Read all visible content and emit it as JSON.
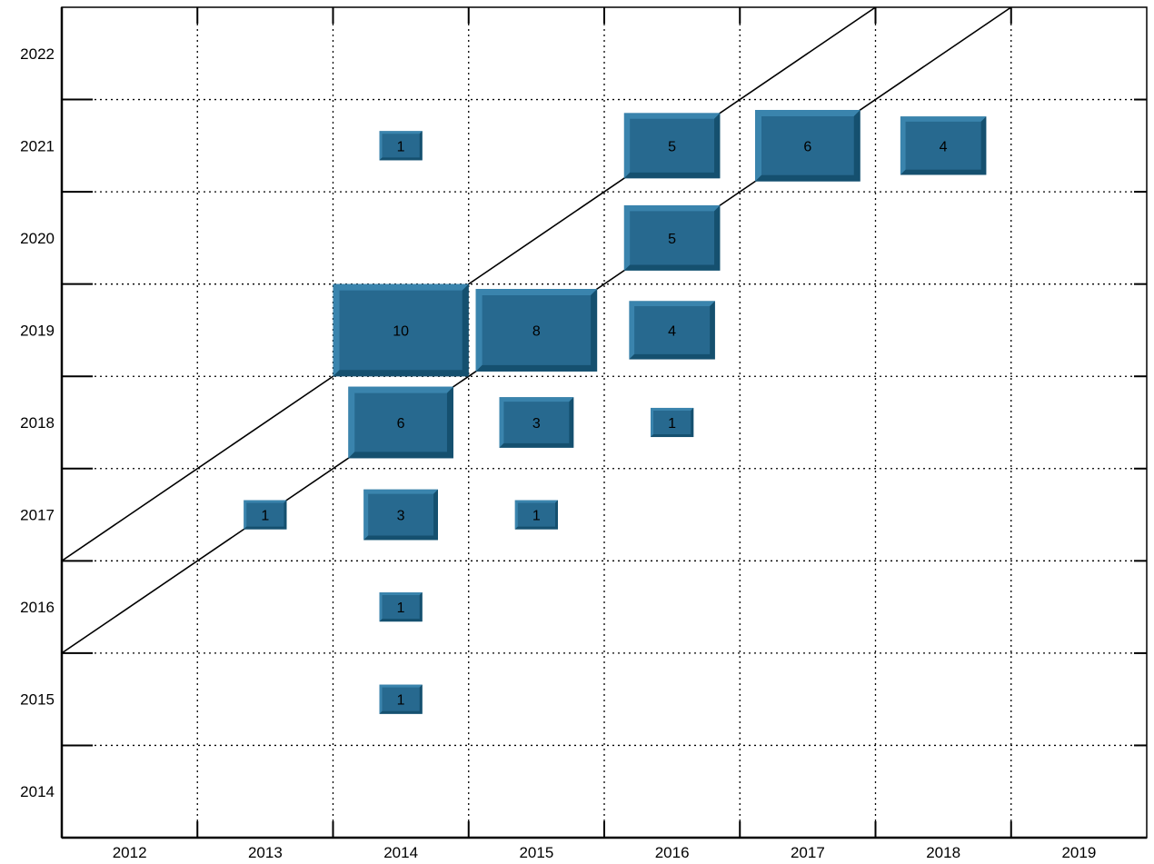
{
  "chart_data": {
    "type": "heatmap",
    "title": "",
    "xlabel": "",
    "ylabel": "",
    "x_categories": [
      "2012",
      "2013",
      "2014",
      "2015",
      "2016",
      "2017",
      "2018",
      "2019"
    ],
    "y_categories": [
      "2014",
      "2015",
      "2016",
      "2017",
      "2018",
      "2019",
      "2020",
      "2021",
      "2022"
    ],
    "grid": true,
    "cells": [
      {
        "x": "2013",
        "y": "2017",
        "value": 1
      },
      {
        "x": "2014",
        "y": "2015",
        "value": 1
      },
      {
        "x": "2014",
        "y": "2016",
        "value": 1
      },
      {
        "x": "2014",
        "y": "2017",
        "value": 3
      },
      {
        "x": "2014",
        "y": "2018",
        "value": 6
      },
      {
        "x": "2014",
        "y": "2019",
        "value": 10
      },
      {
        "x": "2014",
        "y": "2021",
        "value": 1
      },
      {
        "x": "2015",
        "y": "2017",
        "value": 1
      },
      {
        "x": "2015",
        "y": "2018",
        "value": 3
      },
      {
        "x": "2015",
        "y": "2019",
        "value": 8
      },
      {
        "x": "2016",
        "y": "2018",
        "value": 1
      },
      {
        "x": "2016",
        "y": "2019",
        "value": 4
      },
      {
        "x": "2016",
        "y": "2020",
        "value": 5
      },
      {
        "x": "2016",
        "y": "2021",
        "value": 5
      },
      {
        "x": "2017",
        "y": "2021",
        "value": 6
      },
      {
        "x": "2018",
        "y": "2021",
        "value": 4
      }
    ],
    "reference_lines": [
      {
        "from": [
          "2011.5",
          "2016.5"
        ],
        "to": [
          "2017.5",
          "2022.5"
        ]
      },
      {
        "from": [
          "2011.5",
          "2015.5"
        ],
        "to": [
          "2018.5",
          "2022.5"
        ]
      }
    ],
    "colors": {
      "box_face": "#27698f",
      "box_light": "#3a84ad",
      "box_dark": "#15506f",
      "grid": "#000000"
    }
  }
}
